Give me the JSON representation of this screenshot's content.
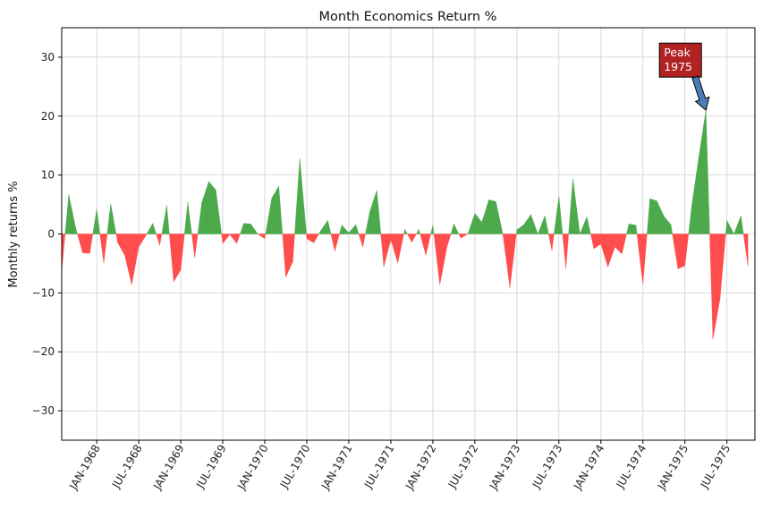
{
  "chart_data": {
    "type": "area",
    "title": "Month Economics Return %",
    "xlabel": "",
    "ylabel": "Monthly returns %",
    "ylim": [
      -35,
      35
    ],
    "yticks": [
      -30,
      -20,
      -10,
      0,
      10,
      20,
      30
    ],
    "ytick_labels": [
      "−30",
      "−20",
      "−10",
      "0",
      "10",
      "20",
      "30"
    ],
    "xlim": [
      "1967-08",
      "1975-11"
    ],
    "xticks": [
      "1968-01",
      "1968-07",
      "1969-01",
      "1969-07",
      "1970-01",
      "1970-07",
      "1971-01",
      "1971-07",
      "1972-01",
      "1972-07",
      "1973-01",
      "1973-07",
      "1974-01",
      "1974-07",
      "1975-01",
      "1975-07"
    ],
    "xtick_labels": [
      "JAN-1968",
      "JUL-1968",
      "JAN-1969",
      "JUL-1969",
      "JAN-1970",
      "JUL-1970",
      "JAN-1971",
      "JUL-1971",
      "JAN-1972",
      "JUL-1972",
      "JAN-1973",
      "JUL-1973",
      "JAN-1974",
      "JUL-1974",
      "JAN-1975",
      "JUL-1975"
    ],
    "grid": true,
    "positive_color": "#4caa4c",
    "negative_color": "#ff4d4d",
    "series": [
      {
        "x_start": "1967-08",
        "values": [
          -6.3,
          6.7,
          1.0,
          -3.2,
          -3.3,
          4.2,
          -4.9,
          5.1,
          -1.5,
          -3.6,
          -8.6,
          -2.2,
          -0.3,
          1.8,
          -1.9,
          4.8,
          -8.1,
          -6.1,
          5.4,
          -4.0,
          5.3,
          8.9,
          7.5,
          -1.6,
          -0.1,
          -1.6,
          1.8,
          1.7,
          0.0,
          -0.8,
          6.1,
          8.1,
          -7.3,
          -4.7,
          12.8,
          -0.8,
          -1.5,
          0.6,
          2.3,
          -2.9,
          1.5,
          0.2,
          1.6,
          -2.2,
          3.8,
          7.4,
          -5.5,
          -1.0,
          -4.9,
          0.8,
          -1.4,
          0.8,
          -3.6,
          1.5,
          -8.6,
          -2.3,
          1.7,
          -0.7,
          0.0,
          3.5,
          2.0,
          5.8,
          5.5,
          0.0,
          -9.1,
          0.7,
          1.6,
          3.3,
          0.0,
          3.1,
          -2.8,
          6.4,
          -5.8,
          9.3,
          0.0,
          2.9,
          -2.5,
          -1.7,
          -5.6,
          -2.2,
          -3.4,
          1.7,
          1.5,
          -8.5,
          6.0,
          5.6,
          3.0,
          1.6,
          -5.9,
          -5.4,
          5.0,
          13.2,
          21.0,
          -17.8,
          -11.1,
          2.3,
          0.0,
          3.1,
          -5.4
        ]
      }
    ],
    "annotation": {
      "text_line1": "Peak",
      "text_line2": "1975",
      "x": "1975-04",
      "y": 21.0,
      "box_color": "#b22222",
      "arrow_color": "#4a7fb5"
    }
  }
}
